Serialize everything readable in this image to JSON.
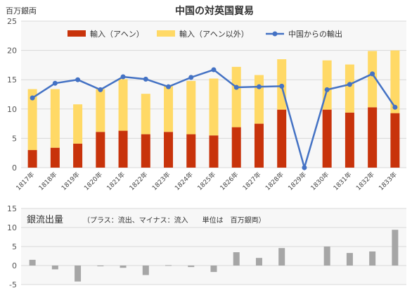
{
  "colors": {
    "opium": "#c8330b",
    "non_opium": "#ffd966",
    "exports": "#4472c4",
    "silver": "#a6a6a6",
    "grid": "#d9d9d9",
    "plot_bg": "#f7f7f7"
  },
  "chart_data": [
    {
      "type": "bar",
      "stacked": true,
      "title": "中国の対英国貿易",
      "unit_label": "百万銀両",
      "categories": [
        "1817年",
        "1818年",
        "1819年",
        "1820年",
        "1821年",
        "1822年",
        "1823年",
        "1824年",
        "1825年",
        "1826年",
        "1827年",
        "1828年",
        "1829年",
        "1830年",
        "1831年",
        "1832年",
        "1833年"
      ],
      "ylim": [
        0,
        25
      ],
      "yticks": [
        0,
        5,
        10,
        15,
        20,
        25
      ],
      "grid": true,
      "legend_position": "top",
      "series": [
        {
          "name": "輸入（アヘン）",
          "type": "bar",
          "color_key": "opium",
          "values": [
            3.0,
            3.4,
            4.1,
            6.1,
            6.3,
            5.7,
            6.1,
            5.7,
            5.5,
            6.9,
            7.5,
            9.9,
            null,
            9.9,
            9.4,
            10.3,
            9.3
          ]
        },
        {
          "name": "輸入（アヘン以外）",
          "type": "bar",
          "color_key": "non_opium",
          "values": [
            10.4,
            10.0,
            6.7,
            7.3,
            8.8,
            6.9,
            7.8,
            9.1,
            9.7,
            10.3,
            8.3,
            8.6,
            null,
            8.4,
            8.2,
            9.6,
            10.7
          ]
        },
        {
          "name": "中国からの輸出",
          "type": "line",
          "color_key": "exports",
          "values": [
            11.9,
            14.4,
            15.0,
            13.3,
            15.5,
            15.1,
            13.8,
            15.4,
            16.7,
            13.7,
            13.8,
            13.9,
            0,
            13.3,
            14.2,
            16.0,
            10.3
          ]
        }
      ]
    },
    {
      "type": "bar",
      "title": "銀流出量",
      "note": "（プラス：流出、マイナス：流入　　単位は　百万銀両）",
      "ylim": [
        -5,
        15
      ],
      "yticks": [
        -5,
        0,
        5,
        10,
        15
      ],
      "grid": true,
      "series": [
        {
          "color_key": "silver",
          "values": [
            1.5,
            -1.0,
            -4.2,
            -0.2,
            -0.6,
            -2.5,
            0.1,
            -0.4,
            -1.7,
            3.5,
            2.0,
            4.6,
            null,
            5.0,
            3.3,
            3.7,
            9.4
          ]
        }
      ]
    }
  ]
}
